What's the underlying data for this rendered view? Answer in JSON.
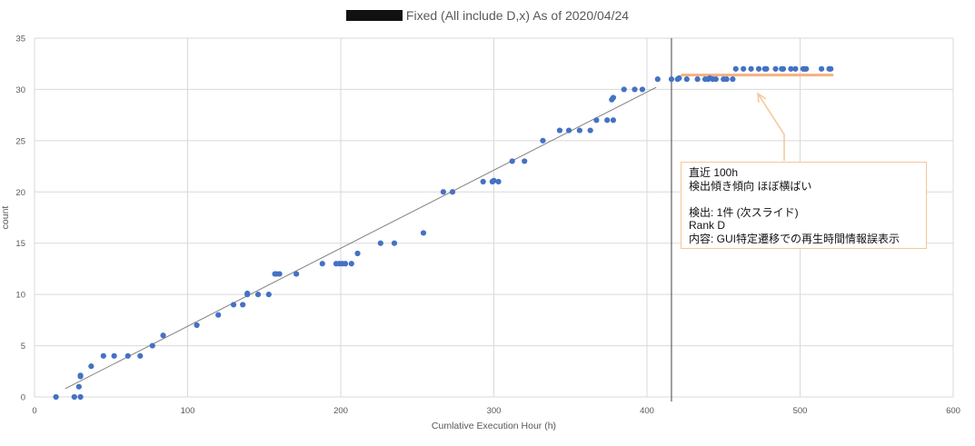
{
  "chart_data": {
    "type": "scatter",
    "title": "Fixed (All include D,x) As of 2020/04/24",
    "title_redacted_prefix": true,
    "xlabel": "Cumlative Execution Hour (h)",
    "ylabel": "count",
    "xlim": [
      0,
      600
    ],
    "ylim": [
      0,
      35
    ],
    "x_ticks": [
      0,
      100,
      200,
      300,
      400,
      500,
      600
    ],
    "y_ticks": [
      0,
      5,
      10,
      15,
      20,
      25,
      30,
      35
    ],
    "grid": true,
    "marker_color": "#4472c4",
    "trendline": {
      "color": "#808080",
      "x": [
        20,
        406
      ],
      "y": [
        0.8,
        30.2
      ]
    },
    "reference_line": {
      "x": 416,
      "color": "#404040"
    },
    "highlight_line": {
      "x": [
        423,
        521
      ],
      "y": [
        31.4,
        31.4
      ],
      "color": "#f4b183"
    },
    "series": [
      {
        "points": [
          [
            14,
            0
          ],
          [
            26,
            0
          ],
          [
            30,
            0
          ],
          [
            29,
            1
          ],
          [
            30,
            2
          ],
          [
            30,
            2.1
          ],
          [
            37,
            3
          ],
          [
            45,
            4
          ],
          [
            52,
            4
          ],
          [
            61,
            4
          ],
          [
            69,
            4
          ],
          [
            77,
            5
          ],
          [
            84,
            6
          ],
          [
            106,
            7
          ],
          [
            120,
            8
          ],
          [
            130,
            9
          ],
          [
            136,
            9
          ],
          [
            139,
            10
          ],
          [
            139,
            10.1
          ],
          [
            146,
            10
          ],
          [
            153,
            10
          ],
          [
            157,
            12
          ],
          [
            158,
            12
          ],
          [
            160,
            12
          ],
          [
            171,
            12
          ],
          [
            188,
            13
          ],
          [
            197,
            13
          ],
          [
            199,
            13
          ],
          [
            201,
            13
          ],
          [
            203,
            13
          ],
          [
            207,
            13
          ],
          [
            211,
            14
          ],
          [
            226,
            15
          ],
          [
            235,
            15
          ],
          [
            254,
            16
          ],
          [
            267,
            20
          ],
          [
            273,
            20
          ],
          [
            293,
            21
          ],
          [
            299,
            21
          ],
          [
            300,
            21.1
          ],
          [
            303,
            21
          ],
          [
            312,
            23
          ],
          [
            320,
            23
          ],
          [
            332,
            25
          ],
          [
            343,
            26
          ],
          [
            349,
            26
          ],
          [
            356,
            26
          ],
          [
            363,
            26
          ],
          [
            367,
            27
          ],
          [
            374,
            27
          ],
          [
            378,
            27
          ],
          [
            377,
            29
          ],
          [
            378,
            29.2
          ],
          [
            385,
            30
          ],
          [
            392,
            30
          ],
          [
            397,
            30
          ],
          [
            407,
            31
          ],
          [
            416,
            31
          ],
          [
            420,
            31
          ],
          [
            421,
            31.1
          ],
          [
            426,
            31
          ],
          [
            433,
            31
          ],
          [
            438,
            31
          ],
          [
            440,
            31
          ],
          [
            441,
            31.1
          ],
          [
            443,
            31
          ],
          [
            445,
            31
          ],
          [
            450,
            31
          ],
          [
            452,
            31
          ],
          [
            456,
            31
          ],
          [
            458,
            32
          ],
          [
            463,
            32
          ],
          [
            468,
            32
          ],
          [
            473,
            32
          ],
          [
            477,
            32
          ],
          [
            478,
            32
          ],
          [
            484,
            32
          ],
          [
            488,
            32
          ],
          [
            489,
            32
          ],
          [
            494,
            32
          ],
          [
            497,
            32
          ],
          [
            502,
            32
          ],
          [
            503,
            32
          ],
          [
            504,
            32
          ],
          [
            514,
            32
          ],
          [
            519,
            32
          ],
          [
            520,
            32
          ]
        ]
      }
    ],
    "annotation": {
      "lines": [
        "直近 100h",
        "検出傾き傾向 ほぼ横ばい",
        "",
        "検出: 1件 (次スライド)",
        "Rank D",
        "内容: GUI特定遷移での再生時間情報誤表示"
      ],
      "border_color": "#f4c79a",
      "arrow_color": "#f4c79a"
    }
  }
}
